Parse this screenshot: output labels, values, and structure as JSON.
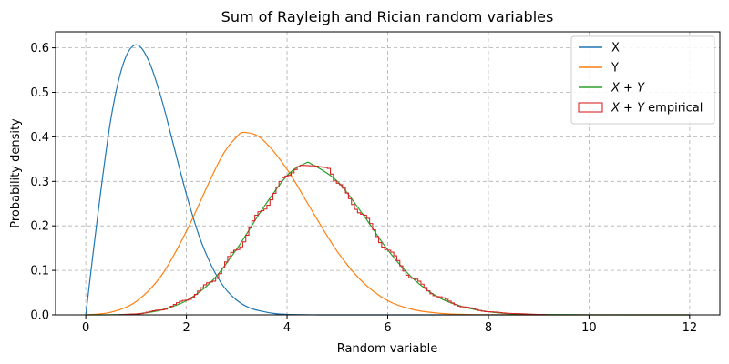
{
  "chart_data": {
    "type": "line",
    "title": "Sum of Rayleigh and Rician random variables",
    "xlabel": "Random variable",
    "ylabel": "Probability density",
    "xlim": [
      -0.6,
      12.6
    ],
    "ylim": [
      0,
      0.636
    ],
    "xticks": [
      0,
      2,
      4,
      6,
      8,
      10,
      12
    ],
    "yticks": [
      0.0,
      0.1,
      0.2,
      0.3,
      0.4,
      0.5,
      0.6
    ],
    "ytick_labels": [
      "0.0",
      "0.1",
      "0.2",
      "0.3",
      "0.4",
      "0.5",
      "0.6"
    ],
    "grid": true,
    "legend_position": "top-right",
    "series": [
      {
        "name": "X",
        "kind": "line",
        "color": "#1f77b4",
        "x": [
          0,
          0.25,
          0.5,
          0.75,
          1.0,
          1.25,
          1.5,
          1.75,
          2.0,
          2.25,
          2.5,
          2.75,
          3.0,
          3.25,
          3.5,
          3.75,
          4.0,
          4.5,
          5.0,
          6.0,
          8.0,
          10.0,
          12.0
        ],
        "y": [
          0,
          0.235,
          0.441,
          0.566,
          0.607,
          0.571,
          0.487,
          0.379,
          0.271,
          0.178,
          0.11,
          0.062,
          0.033,
          0.016,
          0.008,
          0.003,
          0.001,
          0.0001,
          0.0,
          0.0,
          0.0,
          0.0,
          0.0
        ]
      },
      {
        "name": "Y",
        "kind": "line",
        "color": "#ff7f0e",
        "x": [
          0,
          0.5,
          1.0,
          1.5,
          2.0,
          2.5,
          2.75,
          3.0,
          3.15,
          3.5,
          4.0,
          4.5,
          5.0,
          5.5,
          6.0,
          6.5,
          7.0,
          7.5,
          8.0,
          9.0,
          10.0,
          12.0
        ],
        "y": [
          0,
          0.006,
          0.03,
          0.088,
          0.188,
          0.31,
          0.365,
          0.4,
          0.41,
          0.395,
          0.327,
          0.233,
          0.142,
          0.074,
          0.032,
          0.012,
          0.004,
          0.001,
          0.0002,
          0.0,
          0.0,
          0.0
        ]
      },
      {
        "name": "$X + Y$",
        "kind": "line",
        "color": "#2ca02c",
        "x": [
          0,
          0.5,
          1.0,
          1.5,
          2.0,
          2.5,
          3.0,
          3.5,
          4.0,
          4.35,
          4.5,
          5.0,
          5.5,
          6.0,
          6.5,
          7.0,
          7.5,
          8.0,
          8.5,
          9.0,
          10.0,
          12.0
        ],
        "y": [
          0,
          0.0003,
          0.002,
          0.011,
          0.032,
          0.075,
          0.148,
          0.236,
          0.313,
          0.34,
          0.338,
          0.3,
          0.227,
          0.146,
          0.082,
          0.04,
          0.018,
          0.007,
          0.002,
          0.0008,
          0.0001,
          0.0
        ]
      },
      {
        "name": "$X + Y$ empirical",
        "kind": "step-histogram",
        "color": "#d62728",
        "x": [
          0.6,
          1.0,
          1.5,
          2.0,
          2.5,
          3.0,
          3.5,
          4.0,
          4.3,
          4.5,
          4.8,
          5.0,
          5.5,
          6.0,
          6.5,
          7.0,
          7.5,
          8.0,
          8.5,
          9.0,
          9.2
        ],
        "y": [
          0.0,
          0.002,
          0.011,
          0.033,
          0.074,
          0.146,
          0.234,
          0.312,
          0.336,
          0.335,
          0.331,
          0.296,
          0.226,
          0.146,
          0.082,
          0.041,
          0.018,
          0.007,
          0.003,
          0.001,
          0.0
        ]
      }
    ]
  }
}
